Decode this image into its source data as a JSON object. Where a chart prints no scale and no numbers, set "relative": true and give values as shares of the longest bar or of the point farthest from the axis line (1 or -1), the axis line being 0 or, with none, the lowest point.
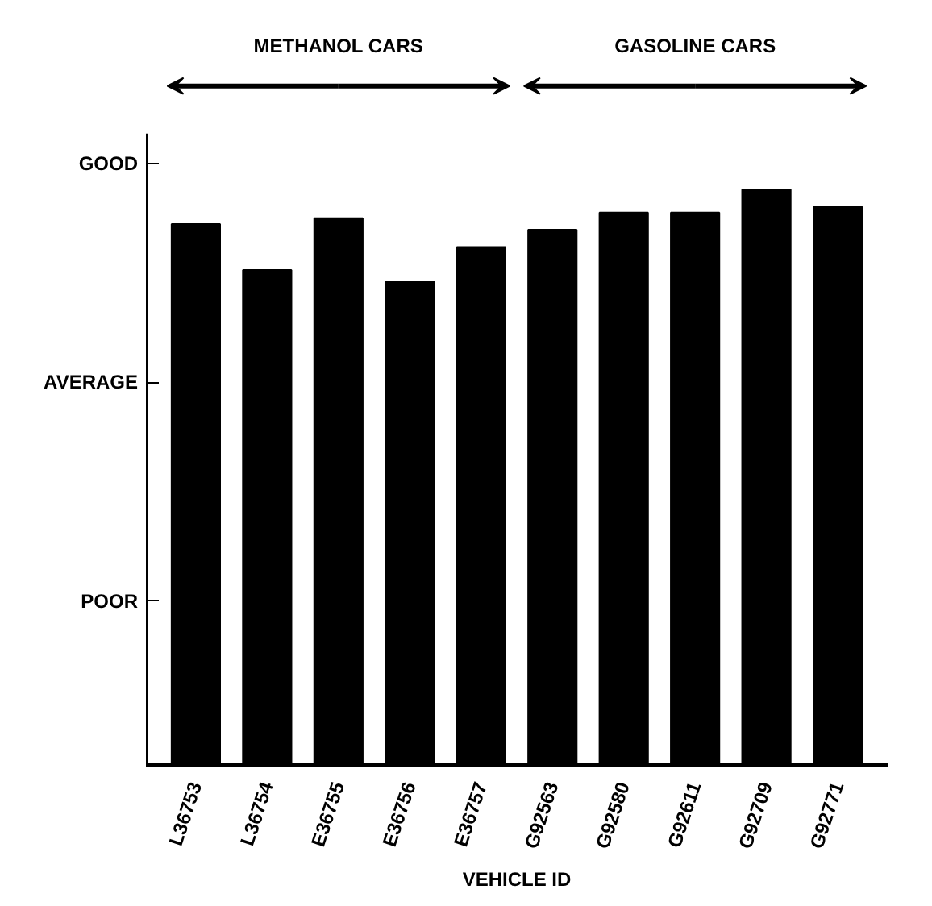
{
  "chart_data": {
    "type": "bar",
    "xlabel": "VEHICLE ID",
    "relative": true,
    "categories": [
      "L36753",
      "L36754",
      "E36755",
      "E36756",
      "E36757",
      "G92563",
      "G92580",
      "G92611",
      "G92709",
      "G92771"
    ],
    "values": [
      0.94,
      0.86,
      0.95,
      0.84,
      0.9,
      0.93,
      0.96,
      0.96,
      1,
      0.97
    ],
    "color": "#000000",
    "grid": false,
    "annotations": [
      "METHANOL CARS",
      "GASOLINE CARS",
      "POOR",
      "AVERAGE",
      "GOOD"
    ]
  }
}
